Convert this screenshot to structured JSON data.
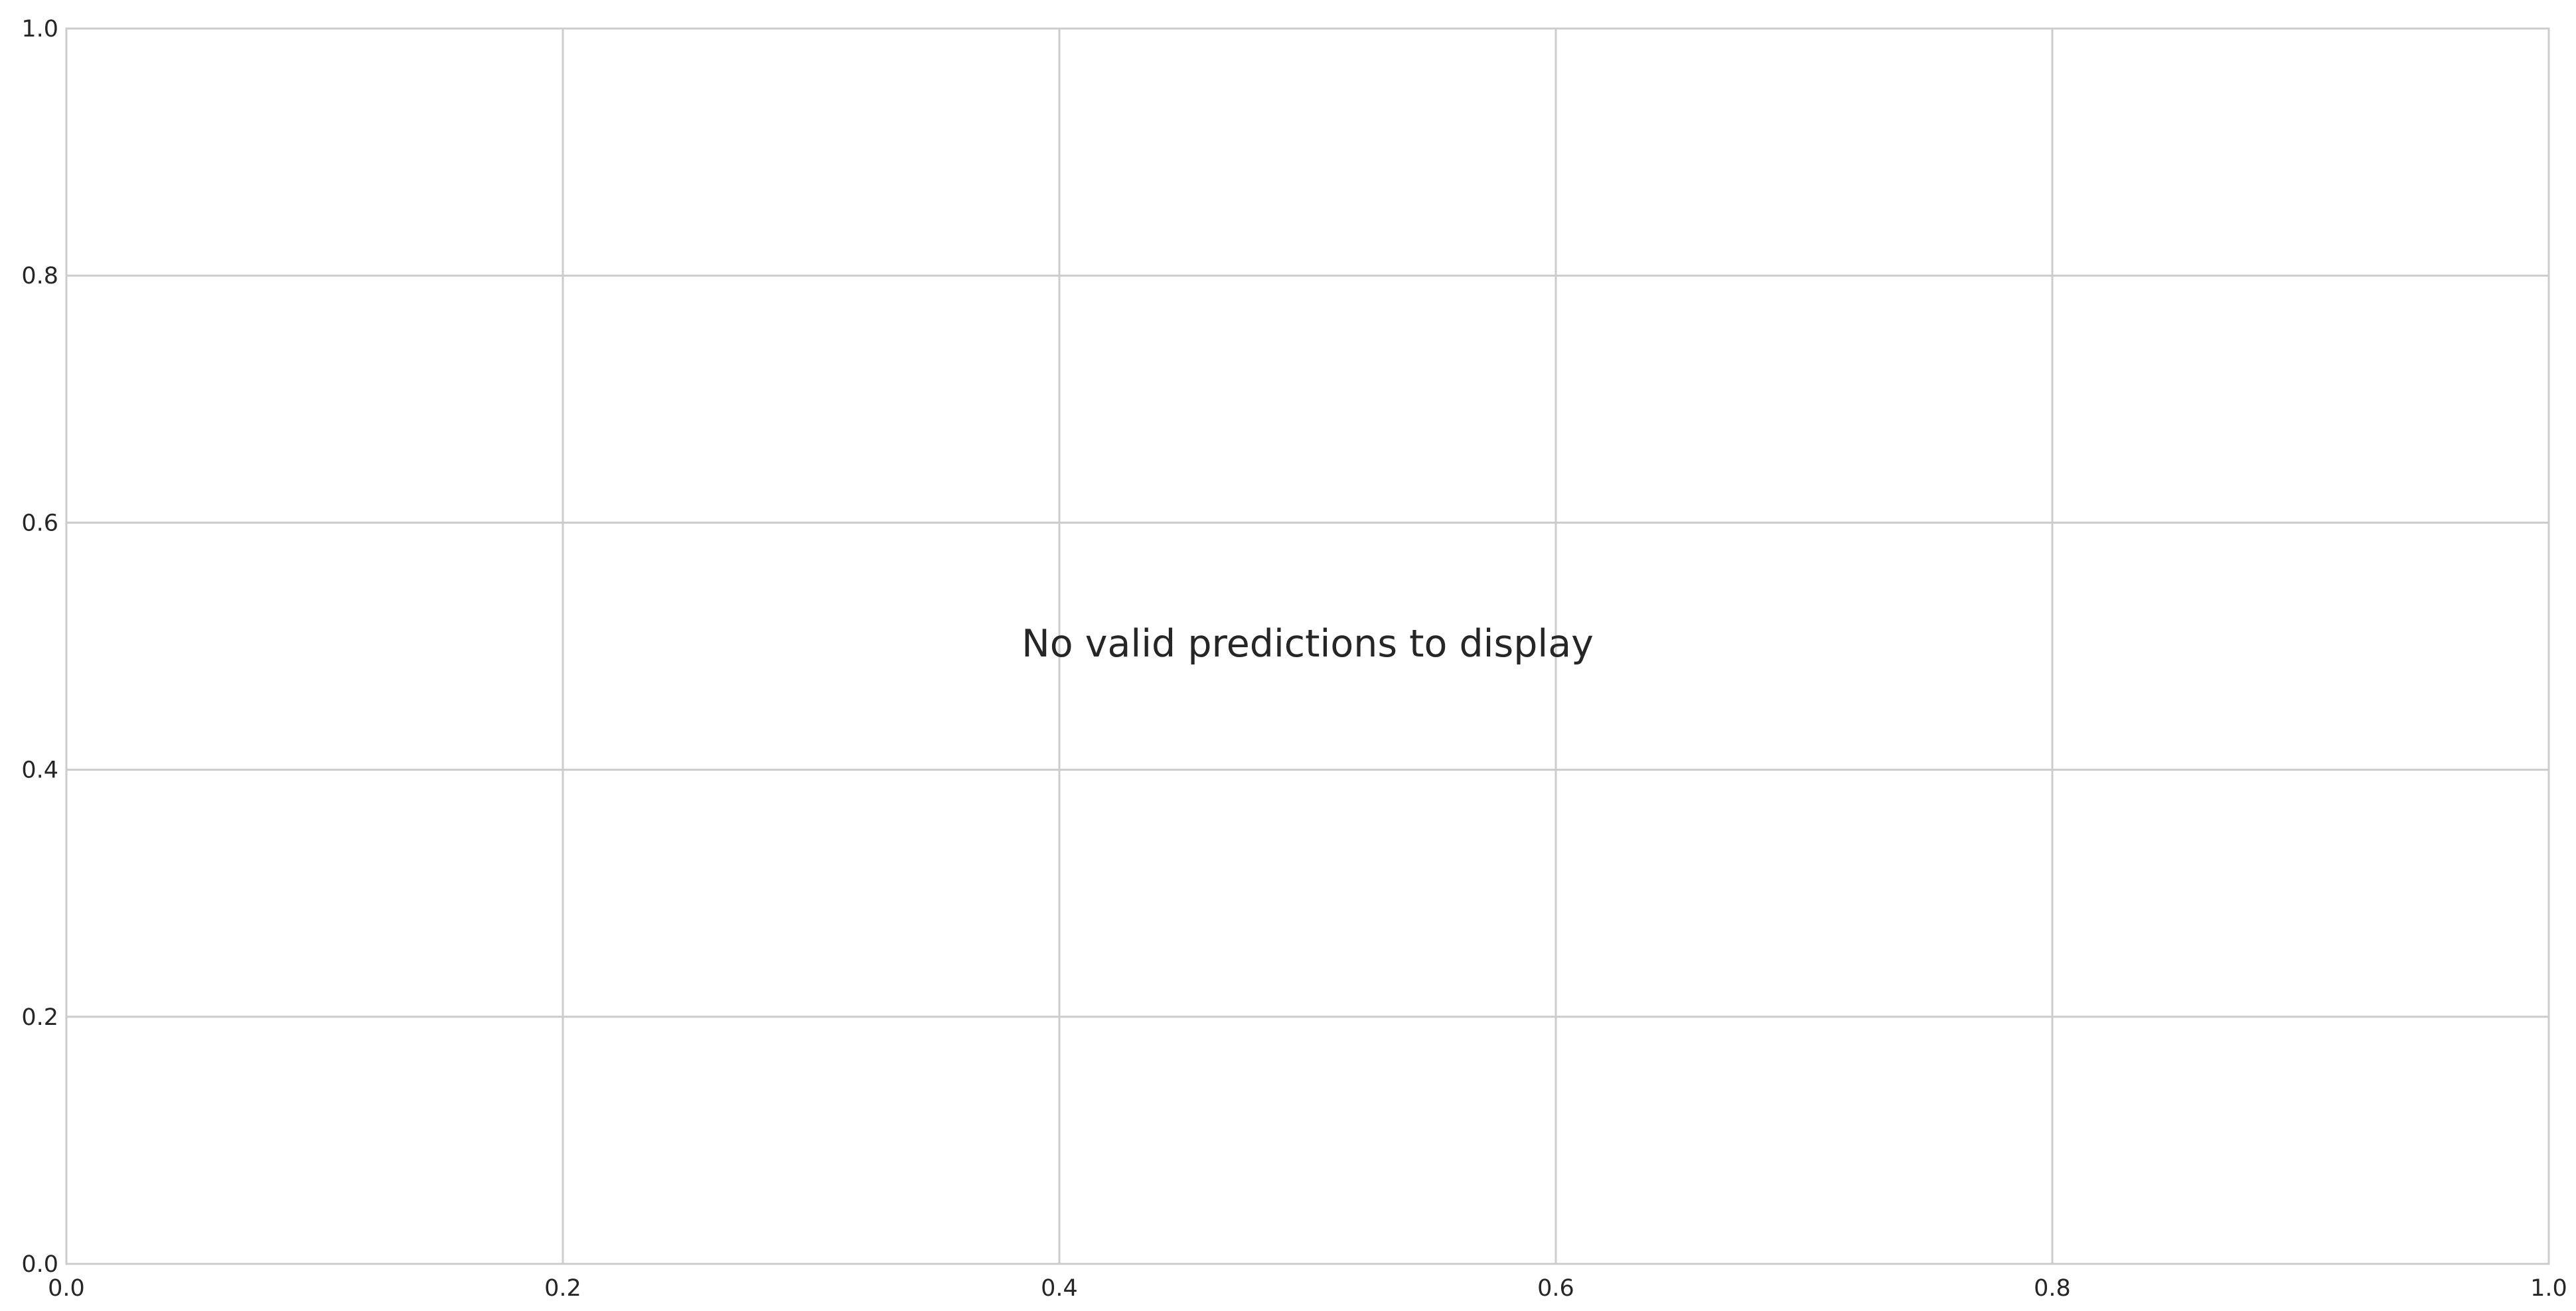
{
  "chart_data": {
    "type": "line",
    "title": "",
    "xlabel": "",
    "ylabel": "",
    "series": [],
    "xlim": [
      0.0,
      1.0
    ],
    "ylim": [
      0.0,
      1.0
    ],
    "xticks": [
      "0.0",
      "0.2",
      "0.4",
      "0.6",
      "0.8",
      "1.0"
    ],
    "yticks": [
      "0.0",
      "0.2",
      "0.4",
      "0.6",
      "0.8",
      "1.0"
    ],
    "grid": true,
    "legend": "none",
    "annotation": {
      "text": "No valid predictions to display",
      "x": 0.5,
      "y": 0.5
    },
    "colors": {
      "background": "#ffffff",
      "grid": "#cccccc",
      "text": "#262626"
    }
  }
}
